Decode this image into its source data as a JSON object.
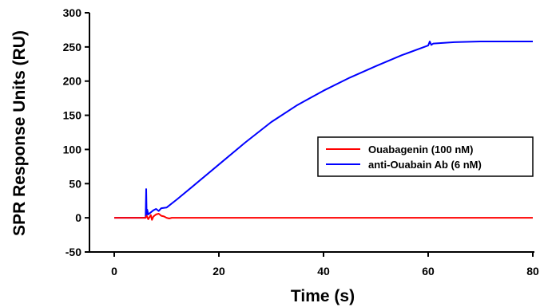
{
  "chart_data": {
    "type": "line",
    "title": "",
    "xlabel": "Time (s)",
    "ylabel": "SPR Response Units (RU)",
    "xlim": [
      0,
      80
    ],
    "ylim": [
      -50,
      300
    ],
    "x_ticks": [
      0,
      20,
      40,
      60,
      80
    ],
    "y_ticks": [
      -50,
      0,
      50,
      100,
      150,
      200,
      250,
      300
    ],
    "x_tick_labels": [
      "0",
      "20",
      "40",
      "60",
      "80"
    ],
    "y_tick_labels": [
      "-50",
      "0",
      "50",
      "100",
      "150",
      "200",
      "250",
      "300"
    ],
    "grid": false,
    "legend_position": "right",
    "series": [
      {
        "name": "Ouabagenin (100 nM)",
        "color": "#ff0000",
        "x": [
          0,
          6,
          6.2,
          6.5,
          7,
          7.2,
          7.5,
          8,
          8.5,
          9,
          9.5,
          10,
          10.5,
          11,
          15,
          20,
          30,
          40,
          50,
          60,
          70,
          80
        ],
        "y": [
          0,
          0,
          3,
          -2,
          4,
          -3,
          2,
          5,
          6,
          3,
          2,
          0,
          -1,
          0,
          0,
          0,
          0,
          0,
          0,
          0,
          0,
          0
        ]
      },
      {
        "name": "anti-Ouabain Ab (6 nM)",
        "color": "#0000ff",
        "x": [
          0,
          6,
          6.1,
          6.2,
          6.3,
          6.5,
          7,
          7.5,
          8,
          8.5,
          9,
          10,
          12,
          15,
          20,
          25,
          30,
          35,
          40,
          45,
          50,
          55,
          60,
          60.3,
          60.6,
          61,
          65,
          70,
          75,
          80
        ],
        "y": [
          0,
          0,
          42,
          3,
          12,
          5,
          8,
          11,
          13,
          10,
          14,
          15,
          27,
          46,
          78,
          110,
          140,
          165,
          186,
          205,
          222,
          238,
          252,
          258,
          253,
          255,
          257,
          258,
          258,
          258
        ]
      }
    ]
  }
}
